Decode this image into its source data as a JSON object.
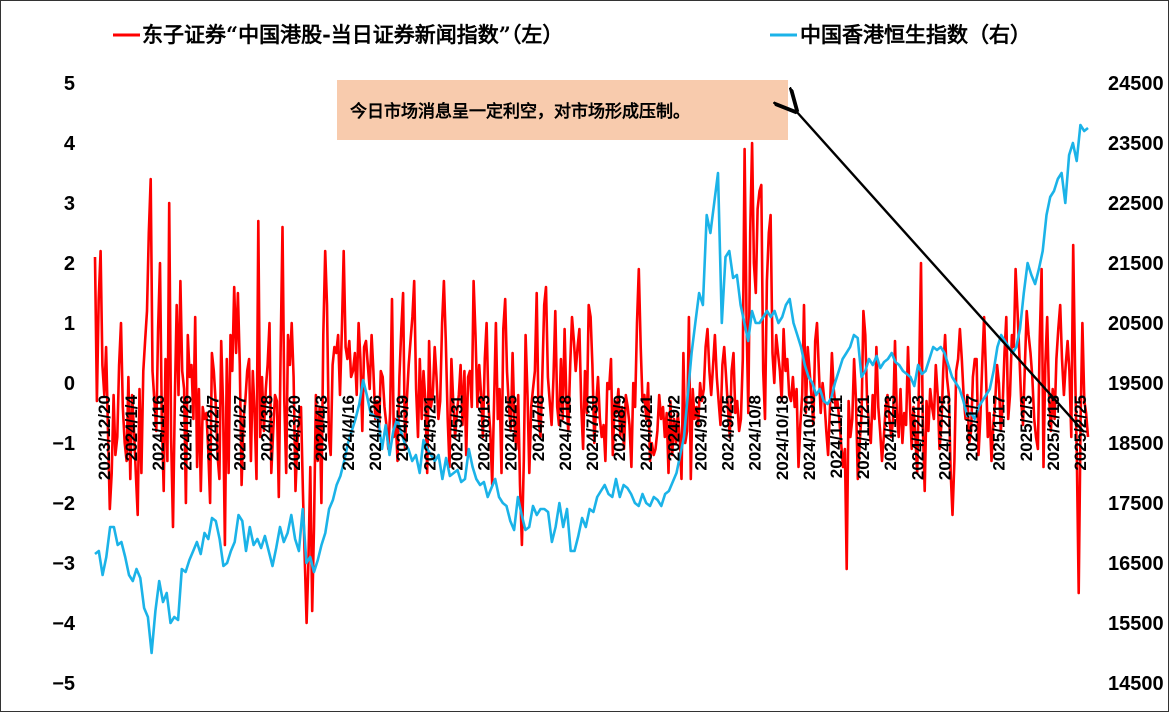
{
  "chart_data": {
    "type": "line",
    "series": [
      {
        "name": "东子证券“中国港股-当日证券新闻指数”（左）",
        "axis": "left",
        "color": "#ff0000",
        "values": [
          2.1,
          -0.3,
          1.4,
          2.2,
          0.3,
          -0.2,
          0.6,
          -0.8,
          -2.1,
          -1.5,
          -0.2,
          -1.2,
          -0.9,
          0.3,
          1.0,
          -0.4,
          -1.0,
          -1.3,
          0.1,
          -1.6,
          -0.2,
          -0.8,
          -1.5,
          -2.2,
          -0.1,
          -1.5,
          0.2,
          0.7,
          1.2,
          2.5,
          3.4,
          0.2,
          -0.3,
          -0.8,
          0.9,
          2.0,
          -0.6,
          -1.8,
          0.4,
          -1.3,
          3.0,
          -0.9,
          -2.4,
          -0.3,
          1.3,
          -0.2,
          1.7,
          0.2,
          -0.1,
          -2.0,
          0.8,
          0.1,
          0.3,
          -0.6,
          1.1,
          -1.4,
          -0.1,
          -1.8,
          -0.4,
          -0.6,
          -0.5,
          -1.1,
          -2.0,
          0.5,
          0.2,
          -0.3,
          -1.2,
          -1.6,
          0.7,
          -0.4,
          -2.7,
          0.4,
          -1.5,
          0.8,
          0.2,
          1.6,
          0.5,
          1.5,
          0.3,
          -1.7,
          -0.6,
          -0.3,
          0.2,
          0.4,
          -1.3,
          0.2,
          -0.5,
          -1.6,
          2.7,
          -0.9,
          0.1,
          -0.8,
          -0.1,
          0.3,
          1.0,
          -1.5,
          -0.8,
          -0.2,
          -0.3,
          -1.9,
          0.5,
          2.6,
          -0.3,
          -1.5,
          0.8,
          0.3,
          1.0,
          0.1,
          -1.8,
          -1.0,
          -0.6,
          -0.4,
          -1.8,
          -2.9,
          -4.0,
          -3.0,
          -1.4,
          -3.8,
          -2.4,
          -0.2,
          -1.3,
          -0.4,
          -2.0,
          0.8,
          2.2,
          1.3,
          -0.9,
          -1.2,
          0.3,
          0.6,
          0.5,
          0.8,
          -0.2,
          0.9,
          2.2,
          0.6,
          0.4,
          0.7,
          0.1,
          0.2,
          0.5,
          -0.2,
          1.0,
          0.4,
          -0.8,
          0.6,
          0.7,
          0.3,
          -0.1,
          0.8,
          0.2,
          -0.6,
          -0.3,
          -0.8,
          0.2,
          0.1,
          -0.4,
          -0.7,
          -1.1,
          -0.5,
          1.4,
          -0.9,
          -0.6,
          -1.3,
          0.1,
          0.9,
          1.5,
          -1.1,
          -0.3,
          0.3,
          0.7,
          1.1,
          1.7,
          -0.1,
          -0.9,
          0.4,
          -0.6,
          0.2,
          -0.3,
          -1.5,
          0.7,
          -0.4,
          -0.2,
          0.6,
          0.1,
          -0.6,
          -0.3,
          1.0,
          1.7,
          0.7,
          -0.6,
          -1.4,
          0.4,
          -0.3,
          -0.9,
          -0.5,
          -0.2,
          0.3,
          -0.7,
          0.2,
          -1.2,
          0.1,
          0.2,
          -0.4,
          1.7,
          0.8,
          -0.4,
          0.3,
          -0.2,
          -0.9,
          0.4,
          1.0,
          -0.4,
          -0.8,
          -1.7,
          -0.3,
          1.0,
          -0.6,
          -0.1,
          -1.5,
          0.9,
          1.4,
          0.2,
          -0.4,
          -0.8,
          0.5,
          -0.7,
          -1.1,
          -0.2,
          -1.7,
          -2.7,
          -1.3,
          0.8,
          -0.2,
          -1.5,
          -0.4,
          -0.1,
          0.2,
          1.5,
          -0.6,
          -0.9,
          0.1,
          1.3,
          1.6,
          0.1,
          -0.3,
          -0.7,
          0.1,
          1.2,
          -0.4,
          -0.7,
          0.4,
          -0.6,
          0.9,
          -0.3,
          -0.8,
          0.3,
          1.1,
          0.7,
          0.2,
          0.6,
          0.9,
          -0.4,
          -1.1,
          0.2,
          -0.5,
          1.3,
          1.1,
          0.3,
          -1.0,
          -0.4,
          0.1,
          -0.6,
          -0.9,
          -0.7,
          -1.3,
          0.0,
          -0.1,
          0.4,
          -1.2,
          -0.3,
          -0.5,
          -0.1,
          -0.9,
          -0.4,
          -1.1,
          -0.2,
          -0.4,
          -0.7,
          -1.4,
          0.0,
          -0.4,
          1.0,
          1.9,
          0.6,
          -0.3,
          -0.2,
          -0.6,
          0.0,
          -1.3,
          -1.0,
          -1.2,
          -1.1,
          -0.8,
          -0.2,
          -0.6,
          -0.4,
          -0.9,
          -0.5,
          -1.5,
          -0.3,
          -1.2,
          -0.6,
          -1.0,
          -0.5,
          -0.9,
          -1.6,
          0.5,
          -1.0,
          -0.8,
          1.1,
          -1.6,
          -0.1,
          -0.6,
          -0.4,
          -0.7,
          0.0,
          -0.3,
          -0.1,
          0.6,
          0.9,
          0.2,
          -0.2,
          0.3,
          0.8,
          0.1,
          -0.3,
          -0.7,
          0.3,
          0.6,
          0.1,
          -0.4,
          -0.9,
          0.2,
          0.5,
          -0.5,
          -0.3,
          -0.8,
          -0.6,
          0.4,
          3.9,
          1.1,
          -0.5,
          2.5,
          4.0,
          2.0,
          1.5,
          2.9,
          3.2,
          3.3,
          0.2,
          -0.6,
          1.7,
          2.5,
          2.8,
          0.5,
          0.0,
          0.8,
          0.5,
          0.2,
          -0.3,
          0.9,
          0.2,
          0.4,
          -0.2,
          -0.3,
          0.1,
          -0.4,
          -0.1,
          -1.4,
          -0.7,
          -0.2,
          1.3,
          -0.5,
          0.6,
          0.2,
          -0.2,
          -0.7,
          0.7,
          1.0,
          0.2,
          -0.5,
          0.0,
          -0.3,
          -0.8,
          -1.2,
          -0.4,
          0.5,
          -0.1,
          -0.4,
          -0.3,
          -0.6,
          -1.0,
          -1.4,
          -1.1,
          -3.1,
          -0.3,
          -0.9,
          -0.6,
          0.4,
          -0.3,
          -1.6,
          -1.0,
          -0.5,
          1.2,
          0.8,
          -0.3,
          -0.7,
          -1.0,
          -0.2,
          -0.6,
          0.6,
          -0.4,
          -0.8,
          -1.3,
          -0.9,
          -0.4,
          -0.2,
          -0.6,
          -0.9,
          -0.6,
          0.7,
          -0.5,
          -0.9,
          -0.1,
          -1.0,
          -0.5,
          -0.7,
          0.6,
          -0.3,
          -1.1,
          -0.4,
          -0.9,
          -1.5,
          0.1,
          2.0,
          -0.7,
          -1.8,
          -0.3,
          -0.8,
          -0.1,
          -0.4,
          -0.6,
          0.3,
          -0.2,
          -1.1,
          -0.7,
          0.2,
          0.8,
          0.1,
          -0.2,
          -1.5,
          -2.2,
          -1.3,
          0.2,
          0.4,
          0.9,
          0.4,
          -0.2,
          -0.6,
          -0.2,
          -1.0,
          -0.8,
          0.1,
          0.4,
          0.4,
          -1.2,
          -0.6,
          0.3,
          1.1,
          0.2,
          -0.9,
          -0.5,
          -1.3,
          -0.7,
          -0.3,
          0.3,
          0.0,
          -0.8,
          -0.4,
          0.5,
          1.1,
          -0.6,
          -0.2,
          0.8,
          0.6,
          1.9,
          1.2,
          0.5,
          -0.3,
          -0.7,
          0.3,
          1.2,
          0.8,
          0.5,
          0.1,
          -0.6,
          -0.9,
          -1.1,
          0.7,
          1.9,
          -1.4,
          0.3,
          1.1,
          -0.2,
          -0.8,
          -0.1,
          -0.6,
          0.4,
          0.9,
          1.3,
          0.4,
          -0.2,
          0.3,
          0.7,
          0.2,
          -0.9,
          2.3,
          0.3,
          -1.3,
          -3.5,
          -0.6,
          1.0,
          -0.3,
          -0.5,
          -0.9
        ],
        "values_note": "approximate daily readings, left axis"
      },
      {
        "name": "中国香港恒生指数（右）",
        "axis": "right",
        "color": "#1bb3e8",
        "values": [
          16650,
          16700,
          16300,
          16600,
          17100,
          17100,
          16800,
          16850,
          16600,
          16300,
          16200,
          16400,
          16250,
          15750,
          15600,
          15000,
          15700,
          16200,
          15850,
          16000,
          15500,
          15600,
          15550,
          16400,
          16350,
          16550,
          16700,
          16850,
          16650,
          17000,
          16900,
          17250,
          17200,
          16900,
          16450,
          16500,
          16700,
          16850,
          17300,
          17200,
          16700,
          17100,
          16800,
          16900,
          16750,
          16950,
          16700,
          16450,
          16750,
          17100,
          16850,
          17000,
          17300,
          16900,
          16700,
          17400,
          16500,
          16600,
          16350,
          16550,
          16800,
          17000,
          17400,
          17550,
          17800,
          17950,
          18200,
          18500,
          18700,
          18900,
          19150,
          19550,
          19300,
          19000,
          18950,
          18900,
          18400,
          18800,
          18300,
          18700,
          18900,
          18700,
          18500,
          18400,
          18200,
          18300,
          18000,
          18550,
          18400,
          18300,
          18200,
          18300,
          17900,
          18250,
          17950,
          18000,
          18050,
          17850,
          17900,
          18400,
          18100,
          17900,
          17800,
          17850,
          17600,
          17750,
          17900,
          17600,
          17500,
          17450,
          17200,
          17050,
          17600,
          17300,
          17050,
          17100,
          17450,
          17300,
          17400,
          17400,
          17350,
          16850,
          17100,
          17500,
          17100,
          17400,
          16700,
          16700,
          16950,
          17250,
          17100,
          17400,
          17350,
          17600,
          17700,
          17800,
          17650,
          17600,
          17900,
          17600,
          17800,
          17750,
          17650,
          17500,
          17450,
          17650,
          17500,
          17450,
          17600,
          17550,
          17450,
          17650,
          17700,
          17850,
          18000,
          18300,
          18600,
          19300,
          20000,
          20500,
          21000,
          20800,
          22300,
          22000,
          22500,
          23000,
          20500,
          21600,
          21700,
          21250,
          21300,
          20800,
          20500,
          20200,
          20700,
          20500,
          20500,
          20600,
          20700,
          20600,
          20700,
          20500,
          20600,
          20800,
          20900,
          20500,
          20300,
          20100,
          19800,
          19600,
          19500,
          19300,
          19400,
          19200,
          19150,
          19250,
          19500,
          19700,
          19900,
          20000,
          20100,
          20300,
          20250,
          19600,
          19700,
          19900,
          19800,
          19950,
          19750,
          19850,
          19900,
          20000,
          19850,
          19800,
          19700,
          19650,
          19600,
          19450,
          19800,
          19650,
          19700,
          19900,
          20100,
          20050,
          20100,
          20000,
          19800,
          19600,
          19500,
          19400,
          19200,
          18950,
          19000,
          18900,
          19100,
          19200,
          19300,
          19400,
          19700,
          20100,
          20300,
          20200,
          20100,
          20000,
          20100,
          20400,
          21000,
          21500,
          21300,
          21150,
          21400,
          21700,
          22300,
          22600,
          22700,
          22900,
          23000,
          22500,
          23300,
          23500,
          23200,
          23800,
          23700,
          23750
        ]
      }
    ],
    "x_tick_labels": [
      "2023/12/20",
      "2024/1/4",
      "2024/1/16",
      "2024/1/26",
      "2024/2/7",
      "2024/2/27",
      "2024/3/8",
      "2024/3/20",
      "2024/4/3",
      "2024/4/16",
      "2024/4/26",
      "2024/5/9",
      "2024/5/21",
      "2024/5/31",
      "2024/6/13",
      "2024/6/25",
      "2024/7/8",
      "2024/7/18",
      "2024/7/30",
      "2024/8/9",
      "2024/8/21",
      "2024/9/2",
      "2024/9/13",
      "2024/9/25",
      "2024/10/8",
      "2024/10/18",
      "2024/10/30",
      "2024/11/11",
      "2024/11/21",
      "2024/12/3",
      "2024/12/13",
      "2024/12/25",
      "2025/1/7",
      "2025/1/17",
      "2025/2/3",
      "2025/2/13",
      "2025/2/25"
    ],
    "y_left": {
      "ticks": [
        5,
        4,
        3,
        2,
        1,
        0,
        -1,
        -2,
        -3,
        -4,
        -5
      ],
      "range": [
        -5,
        5
      ]
    },
    "y_right": {
      "ticks": [
        24500,
        23500,
        22500,
        21500,
        20500,
        19500,
        18500,
        17500,
        16500,
        15500,
        14500
      ],
      "range": [
        14500,
        24500
      ]
    },
    "annotation": "今日市场消息呈一定利空，对市场形成压制。",
    "annotation_bg": "#f8cbad",
    "grid": false,
    "legend_position": "top"
  }
}
